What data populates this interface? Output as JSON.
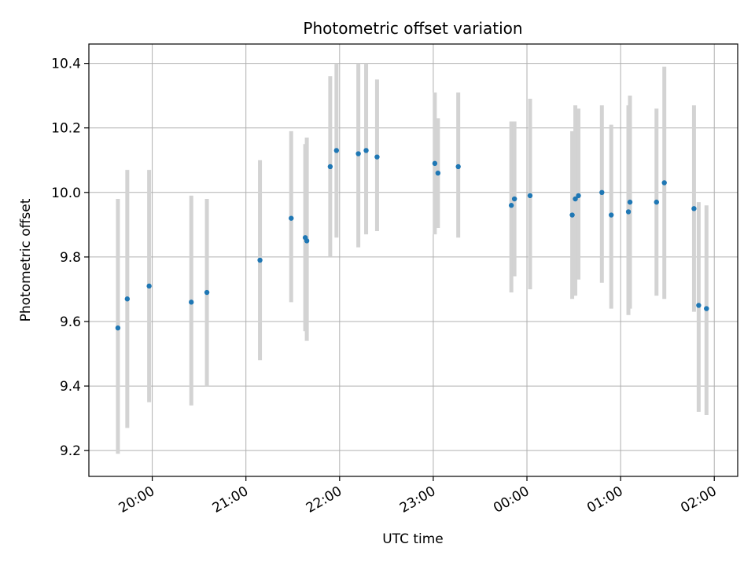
{
  "chart_data": {
    "type": "scatter",
    "title": "Photometric offset variation",
    "xlabel": "UTC time",
    "ylabel": "Photometric offset",
    "grid": true,
    "x_tick_labels": [
      "20:00",
      "21:00",
      "22:00",
      "23:00",
      "00:00",
      "01:00",
      "02:00"
    ],
    "y_tick_labels": [
      "9.2",
      "9.4",
      "9.6",
      "9.8",
      "10.0",
      "10.2",
      "10.4"
    ],
    "y_ticks": [
      9.2,
      9.4,
      9.6,
      9.8,
      10.0,
      10.2,
      10.4
    ],
    "ylim": [
      9.12,
      10.46
    ],
    "x_start_tick": "20:00",
    "xlim_minutes": [
      -40.6,
      375.0
    ],
    "point_color": "#1f77b4",
    "errorbar_color": "#d3d3d3",
    "series": [
      {
        "x": [
          "19:38",
          "19:44",
          "19:58",
          "20:25",
          "20:35",
          "21:09",
          "21:29",
          "21:38",
          "21:39",
          "21:54",
          "21:58",
          "22:12",
          "22:17",
          "22:24",
          "23:01",
          "23:03",
          "23:16",
          "23:50",
          "23:52",
          "00:02",
          "00:29",
          "00:31",
          "00:33",
          "00:48",
          "00:54",
          "01:05",
          "01:06",
          "01:23",
          "01:28",
          "01:47",
          "01:50",
          "01:55"
        ],
        "y": [
          9.58,
          9.67,
          9.71,
          9.66,
          9.69,
          9.79,
          9.92,
          9.86,
          9.85,
          10.08,
          10.13,
          10.12,
          10.13,
          10.11,
          10.09,
          10.06,
          10.08,
          9.96,
          9.98,
          9.99,
          9.93,
          9.98,
          9.99,
          10.0,
          9.93,
          9.94,
          9.97,
          9.97,
          10.03,
          9.95,
          9.65,
          9.64
        ],
        "yerr_low": [
          9.19,
          9.27,
          9.35,
          9.34,
          9.4,
          9.48,
          9.66,
          9.57,
          9.54,
          9.8,
          9.86,
          9.83,
          9.87,
          9.88,
          9.87,
          9.89,
          9.86,
          9.69,
          9.74,
          9.7,
          9.67,
          9.68,
          9.73,
          9.72,
          9.64,
          9.62,
          9.64,
          9.68,
          9.67,
          9.63,
          9.32,
          9.31
        ],
        "yerr_high": [
          9.98,
          10.07,
          10.07,
          9.99,
          9.98,
          10.1,
          10.19,
          10.15,
          10.17,
          10.36,
          10.4,
          10.4,
          10.4,
          10.35,
          10.31,
          10.23,
          10.31,
          10.22,
          10.22,
          10.29,
          10.19,
          10.27,
          10.26,
          10.27,
          10.21,
          10.27,
          10.3,
          10.26,
          10.39,
          10.27,
          9.97,
          9.96
        ]
      }
    ]
  }
}
